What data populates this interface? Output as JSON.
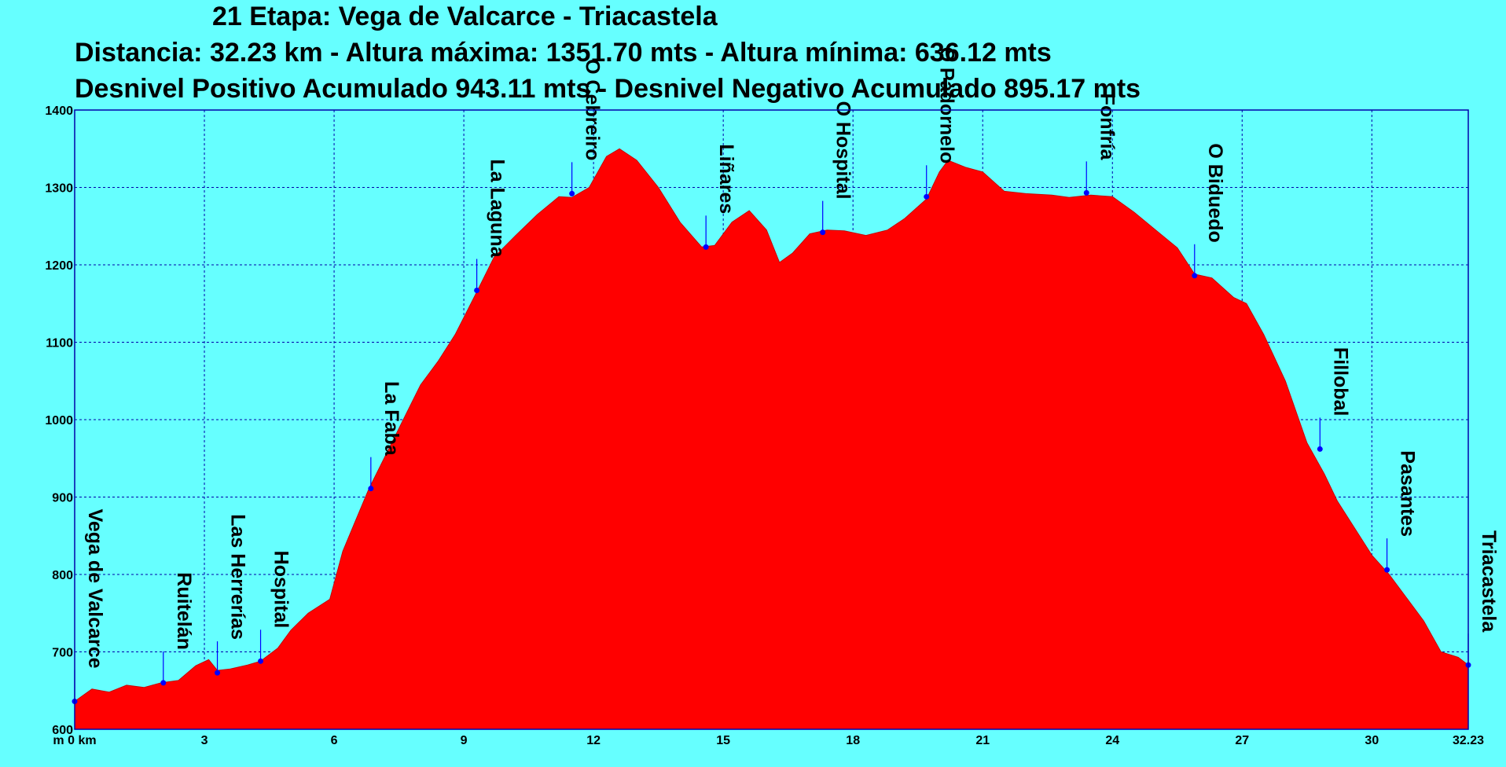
{
  "header": {
    "title": "21 Etapa: Vega de Valcarce - Triacastela",
    "line2": "Distancia: 32.23 km - Altura máxima: 1351.70 mts - Altura mínima: 636.12 mts",
    "line3": "Desnivel Positivo Acumulado 943.11 mts - Desnivel Negativo Acumulado 895.17 mts"
  },
  "colors": {
    "background": "#66ffff",
    "fill": "#ff0000",
    "marker": "#0000ff",
    "grid": "#0000aa"
  },
  "chart_data": {
    "type": "area",
    "xlim": [
      0,
      32.23
    ],
    "ylim": [
      600,
      1400
    ],
    "grid": true,
    "x_tick_labels": [
      "m 0 km",
      "3",
      "6",
      "9",
      "12",
      "15",
      "18",
      "21",
      "24",
      "27",
      "30",
      "32.23"
    ],
    "x_ticks": [
      0,
      3,
      6,
      9,
      12,
      15,
      18,
      21,
      24,
      27,
      30,
      32.23
    ],
    "y_ticks": [
      600,
      700,
      800,
      900,
      1000,
      1100,
      1200,
      1300,
      1400
    ],
    "profile": {
      "x": [
        0,
        0.4,
        0.8,
        1.2,
        1.6,
        2.0,
        2.4,
        2.8,
        3.1,
        3.3,
        3.6,
        4.0,
        4.3,
        4.7,
        5.0,
        5.4,
        5.9,
        6.2,
        6.5,
        6.8,
        7.2,
        7.6,
        8.0,
        8.4,
        8.8,
        9.3,
        9.7,
        10.2,
        10.7,
        11.2,
        11.5,
        11.9,
        12.3,
        12.6,
        13.0,
        13.5,
        14.0,
        14.5,
        14.8,
        15.2,
        15.6,
        16.0,
        16.3,
        16.6,
        17.0,
        17.4,
        17.8,
        18.3,
        18.8,
        19.2,
        19.7,
        20.0,
        20.2,
        20.6,
        21.0,
        21.5,
        22.0,
        22.6,
        23.0,
        23.5,
        24.0,
        24.5,
        25.0,
        25.5,
        25.9,
        26.3,
        26.8,
        27.1,
        27.5,
        28.0,
        28.5,
        28.9,
        29.2,
        29.6,
        30.0,
        30.4,
        30.8,
        31.2,
        31.6,
        32.0,
        32.23
      ],
      "y": [
        636,
        652,
        648,
        657,
        654,
        660,
        663,
        682,
        690,
        676,
        678,
        683,
        688,
        705,
        728,
        750,
        768,
        830,
        870,
        910,
        955,
        1000,
        1045,
        1075,
        1110,
        1165,
        1210,
        1238,
        1265,
        1288,
        1287,
        1300,
        1340,
        1350,
        1335,
        1300,
        1255,
        1223,
        1225,
        1255,
        1270,
        1245,
        1203,
        1215,
        1240,
        1245,
        1244,
        1238,
        1245,
        1260,
        1285,
        1320,
        1335,
        1326,
        1320,
        1295,
        1292,
        1290,
        1287,
        1290,
        1288,
        1268,
        1245,
        1222,
        1188,
        1183,
        1158,
        1150,
        1110,
        1050,
        970,
        930,
        895,
        860,
        825,
        800,
        770,
        740,
        700,
        693,
        683
      ]
    },
    "waypoints": [
      {
        "name": "Vega de Valcarce",
        "km": 0.0,
        "alt": 636
      },
      {
        "name": "Ruitelán",
        "km": 2.05,
        "alt": 660
      },
      {
        "name": "Las Herrerías",
        "km": 3.3,
        "alt": 673
      },
      {
        "name": "Hospital",
        "km": 4.3,
        "alt": 688
      },
      {
        "name": "La Faba",
        "km": 6.85,
        "alt": 911
      },
      {
        "name": "La Laguna",
        "km": 9.3,
        "alt": 1167
      },
      {
        "name": "O Cebreiro",
        "km": 11.5,
        "alt": 1292
      },
      {
        "name": "Liñares",
        "km": 14.6,
        "alt": 1223
      },
      {
        "name": "O Hospital",
        "km": 17.3,
        "alt": 1242
      },
      {
        "name": "O Padornelo",
        "km": 19.7,
        "alt": 1288
      },
      {
        "name": "Fonfría",
        "km": 23.4,
        "alt": 1293
      },
      {
        "name": "O Biduedo",
        "km": 25.9,
        "alt": 1186
      },
      {
        "name": "Fillobal",
        "km": 28.8,
        "alt": 962
      },
      {
        "name": "Pasantes",
        "km": 30.35,
        "alt": 806
      },
      {
        "name": "Triacastela",
        "km": 32.23,
        "alt": 683
      }
    ]
  }
}
